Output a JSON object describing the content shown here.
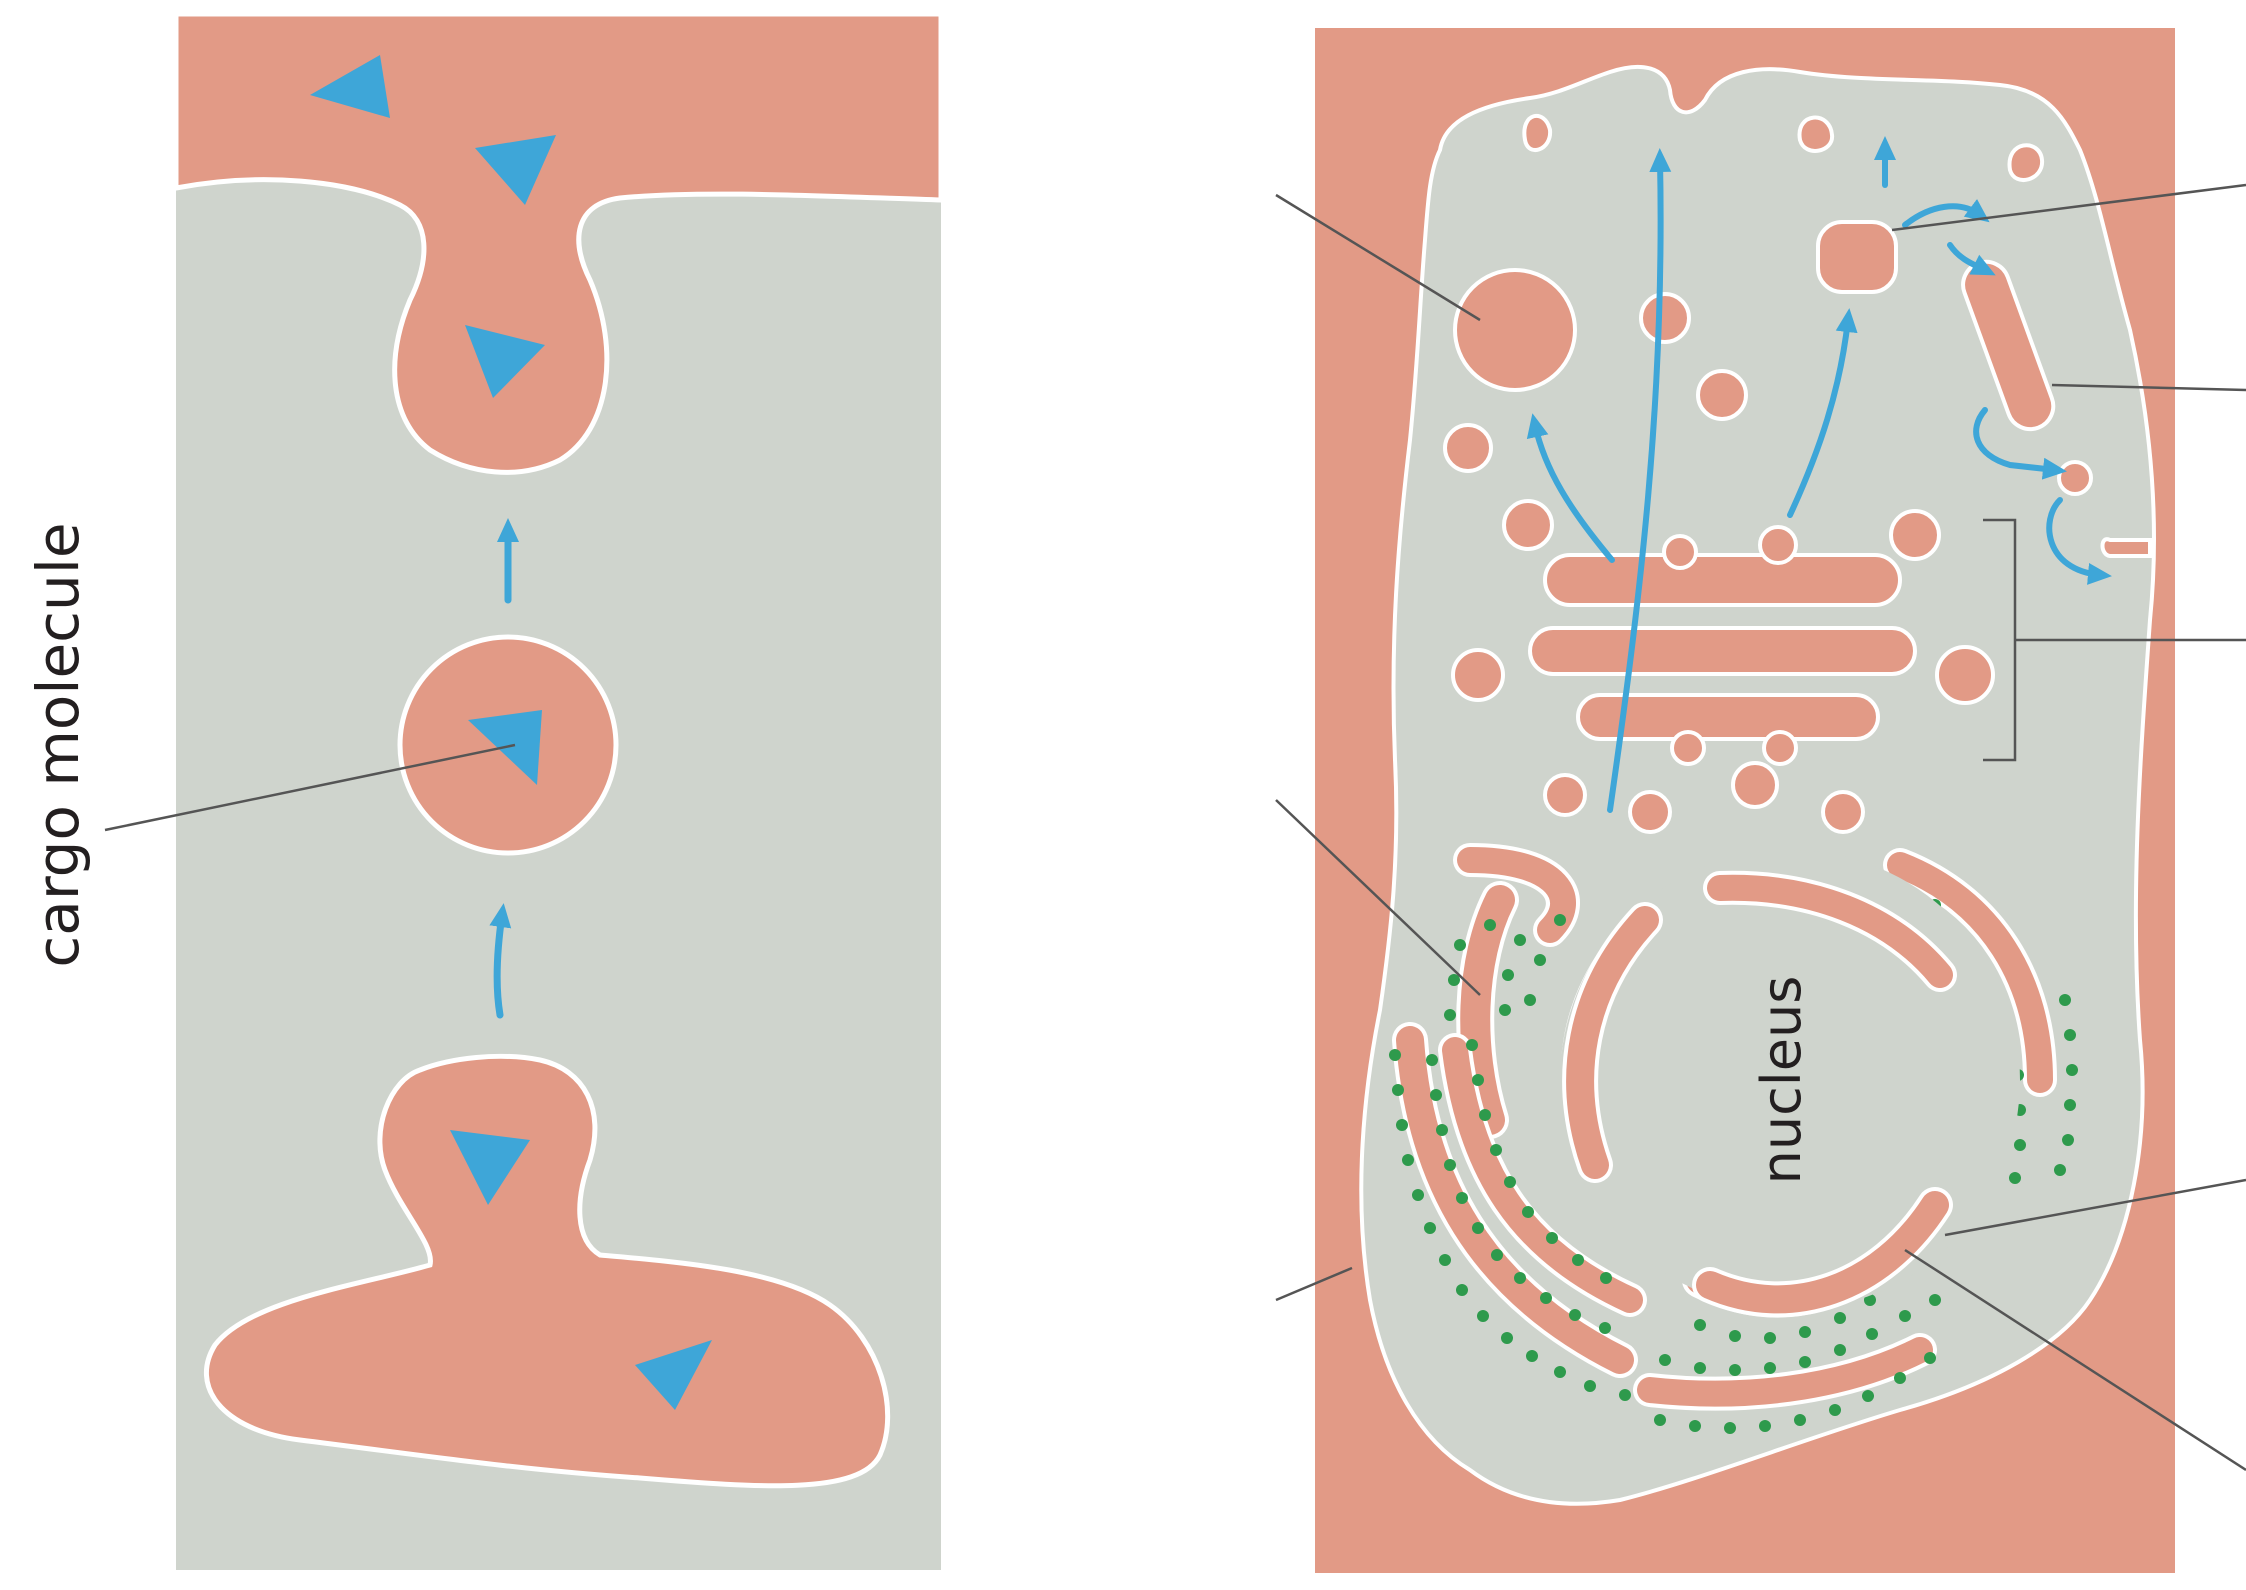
{
  "labels": {
    "cargo_molecule": "cargo molecule",
    "nucleus": "nucleus"
  },
  "colors": {
    "lumen": "#e29a86",
    "cytosol": "#cfd4cd",
    "membrane": "#ffffff",
    "arrow": "#3ea6d8",
    "cargo": "#3ea6d8",
    "ribosome": "#2e9a4c",
    "leader_line": "#555555"
  }
}
